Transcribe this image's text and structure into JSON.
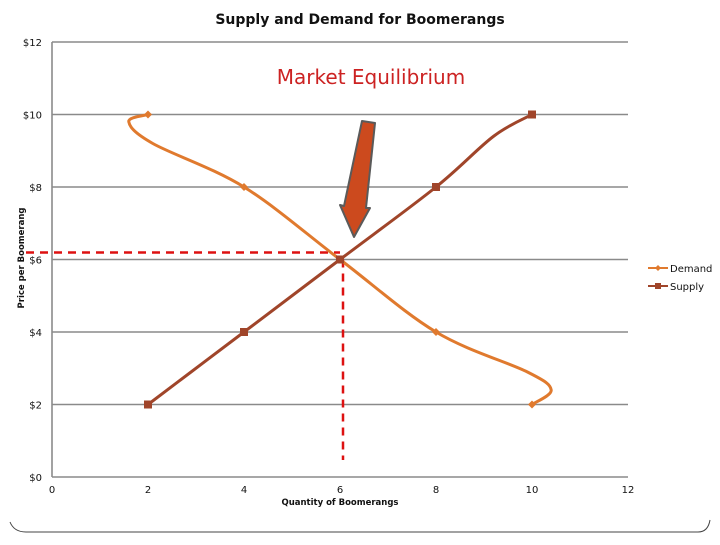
{
  "chart_data": {
    "type": "line",
    "title": "Supply and Demand for Boomerangs",
    "xlabel": "Quantity of Boomerangs",
    "ylabel": "Price per Boomerang",
    "xlim": [
      0,
      12
    ],
    "ylim": [
      0,
      12
    ],
    "x_ticks": [
      "0",
      "2",
      "4",
      "6",
      "8",
      "10",
      "12"
    ],
    "y_ticks": [
      "$0",
      "$2",
      "$4",
      "$6",
      "$8",
      "$10",
      "$12"
    ],
    "grid": "horizontal",
    "legend_position": "right",
    "series": [
      {
        "name": "Demand",
        "color": "#e07a2e",
        "marker": "diamond",
        "points": [
          [
            2,
            10
          ],
          [
            4,
            8
          ],
          [
            6,
            6
          ],
          [
            8,
            4
          ],
          [
            10,
            2
          ]
        ]
      },
      {
        "name": "Supply",
        "color": "#a0452a",
        "marker": "square",
        "points": [
          [
            2,
            2
          ],
          [
            4,
            4
          ],
          [
            6,
            6
          ],
          [
            8,
            8
          ],
          [
            10,
            10
          ]
        ]
      }
    ],
    "annotation": {
      "text": "Market Equilibrium",
      "color": "#cc2222",
      "arrow_color": "#cc4a1e",
      "point": [
        6,
        6
      ],
      "guide_color": "#dd1111"
    }
  }
}
